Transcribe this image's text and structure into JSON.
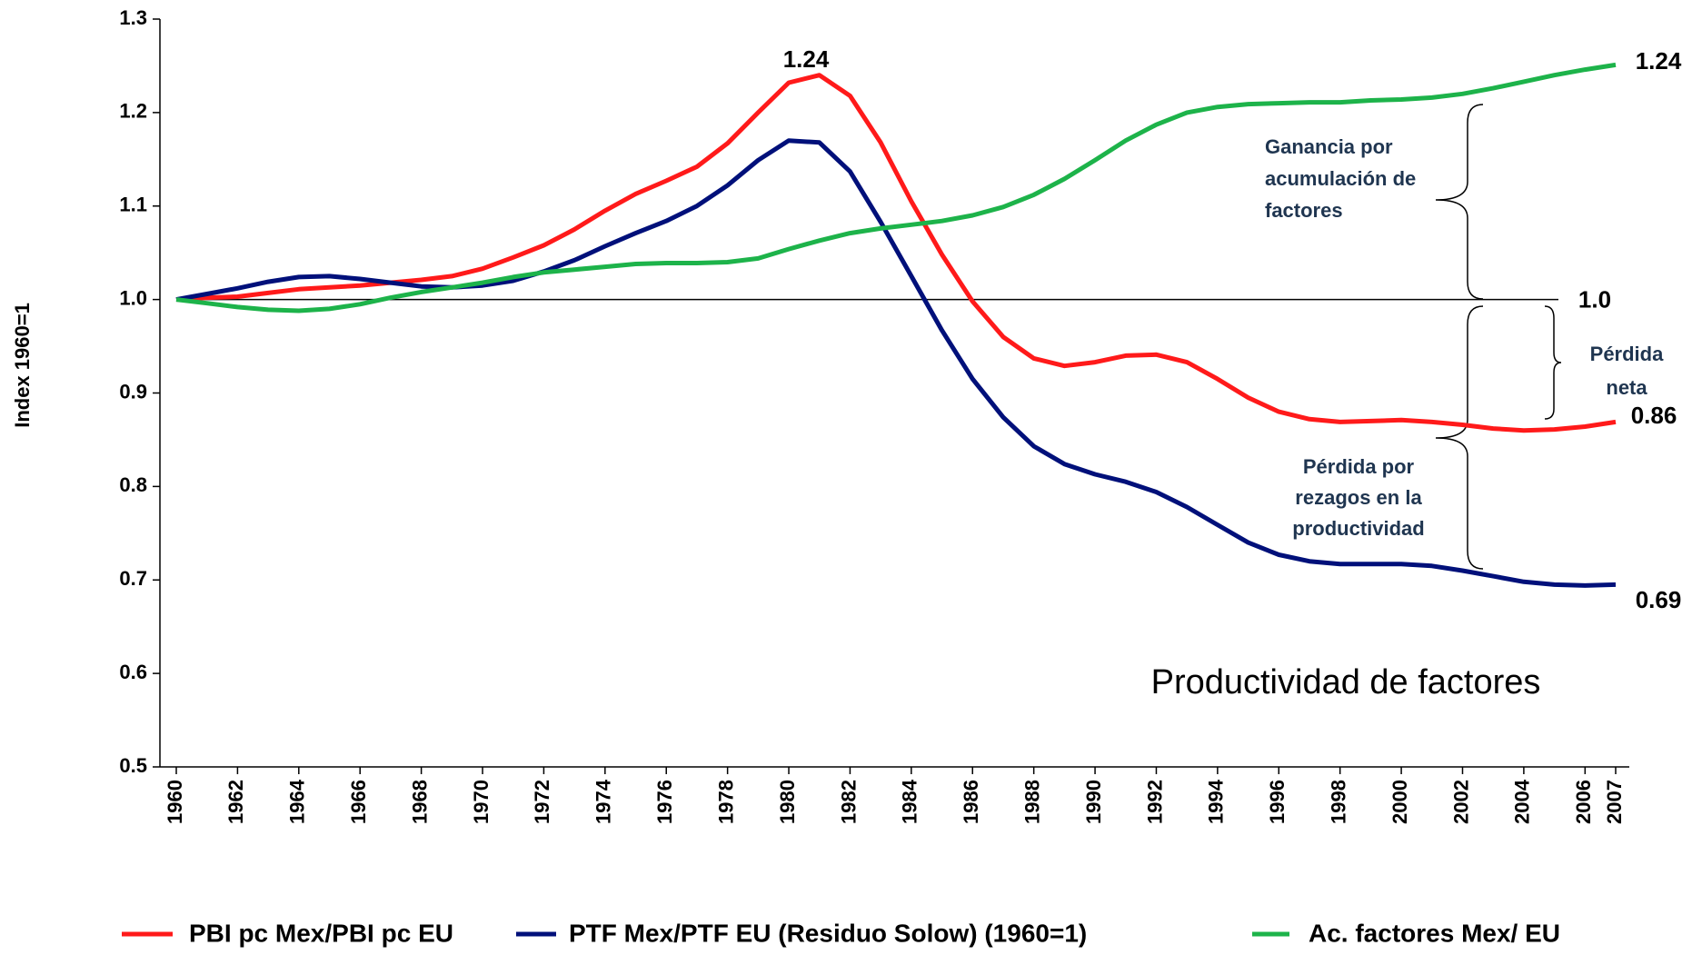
{
  "chart_data": {
    "type": "line",
    "y_label": "Index 1960=1",
    "x": [
      1960,
      1961,
      1962,
      1963,
      1964,
      1965,
      1966,
      1967,
      1968,
      1969,
      1970,
      1971,
      1972,
      1973,
      1974,
      1975,
      1976,
      1977,
      1978,
      1979,
      1980,
      1981,
      1982,
      1983,
      1984,
      1985,
      1986,
      1987,
      1988,
      1989,
      1990,
      1991,
      1992,
      1993,
      1994,
      1995,
      1996,
      1997,
      1998,
      1999,
      2000,
      2001,
      2002,
      2003,
      2004,
      2005,
      2006,
      2007
    ],
    "xticks": [
      1960,
      1962,
      1964,
      1966,
      1968,
      1970,
      1972,
      1974,
      1976,
      1978,
      1980,
      1982,
      1984,
      1986,
      1988,
      1990,
      1992,
      1994,
      1996,
      1998,
      2000,
      2002,
      2004,
      2006,
      2007
    ],
    "ylim": [
      0.5,
      1.3
    ],
    "yticks": [
      0.5,
      0.6,
      0.7,
      0.8,
      0.9,
      {
        "value": 1,
        "label": "1.0"
      },
      1.1,
      1.2,
      1.3
    ],
    "reference_line": {
      "value": 1,
      "label": "1.0"
    },
    "series": [
      {
        "name": "PBI pc Mex/PBI pc EU",
        "color": "#ff1a1a",
        "values": [
          1.0,
          1.002,
          1.003,
          1.007,
          1.011,
          1.013,
          1.015,
          1.018,
          1.021,
          1.025,
          1.033,
          1.045,
          1.058,
          1.075,
          1.095,
          1.113,
          1.127,
          1.142,
          1.167,
          1.2,
          1.232,
          1.24,
          1.218,
          1.168,
          1.105,
          1.048,
          0.998,
          0.96,
          0.937,
          0.929,
          0.933,
          0.94,
          0.941,
          0.933,
          0.915,
          0.895,
          0.88,
          0.872,
          0.869,
          0.87,
          0.871,
          0.869,
          0.866,
          0.862,
          0.86,
          0.861,
          0.864,
          0.869
        ]
      },
      {
        "name": "PTF Mex/PTF EU (Residuo Solow) (1960=1)",
        "color": "#00107a",
        "values": [
          1.0,
          1.006,
          1.012,
          1.019,
          1.024,
          1.025,
          1.022,
          1.018,
          1.014,
          1.013,
          1.015,
          1.02,
          1.03,
          1.042,
          1.057,
          1.071,
          1.084,
          1.1,
          1.122,
          1.149,
          1.17,
          1.168,
          1.137,
          1.083,
          1.025,
          0.967,
          0.915,
          0.874,
          0.843,
          0.824,
          0.813,
          0.805,
          0.794,
          0.778,
          0.759,
          0.74,
          0.727,
          0.72,
          0.717,
          0.717,
          0.717,
          0.715,
          0.71,
          0.704,
          0.698,
          0.695,
          0.694,
          0.695
        ]
      },
      {
        "name": "Ac. factores  Mex/ EU",
        "color": "#1db34a",
        "values": [
          1.0,
          0.996,
          0.992,
          0.989,
          0.988,
          0.99,
          0.995,
          1.002,
          1.008,
          1.013,
          1.018,
          1.024,
          1.029,
          1.032,
          1.035,
          1.038,
          1.039,
          1.039,
          1.04,
          1.044,
          1.054,
          1.063,
          1.071,
          1.076,
          1.08,
          1.084,
          1.09,
          1.099,
          1.112,
          1.129,
          1.149,
          1.17,
          1.187,
          1.2,
          1.206,
          1.209,
          1.21,
          1.211,
          1.211,
          1.213,
          1.214,
          1.216,
          1.22,
          1.226,
          1.233,
          1.24,
          1.246,
          1.251
        ]
      }
    ],
    "value_labels": [
      "1.24",
      "1.24",
      "0.86",
      "0.69"
    ],
    "annotations": {
      "gain": [
        "Ganancia por",
        "acumulación de",
        "factores"
      ],
      "net_loss": [
        "Pérdida",
        "neta"
      ],
      "productivity_loss": [
        "Pérdida por",
        "rezagos en la",
        "productividad"
      ],
      "caption": "Productividad de factores"
    }
  }
}
